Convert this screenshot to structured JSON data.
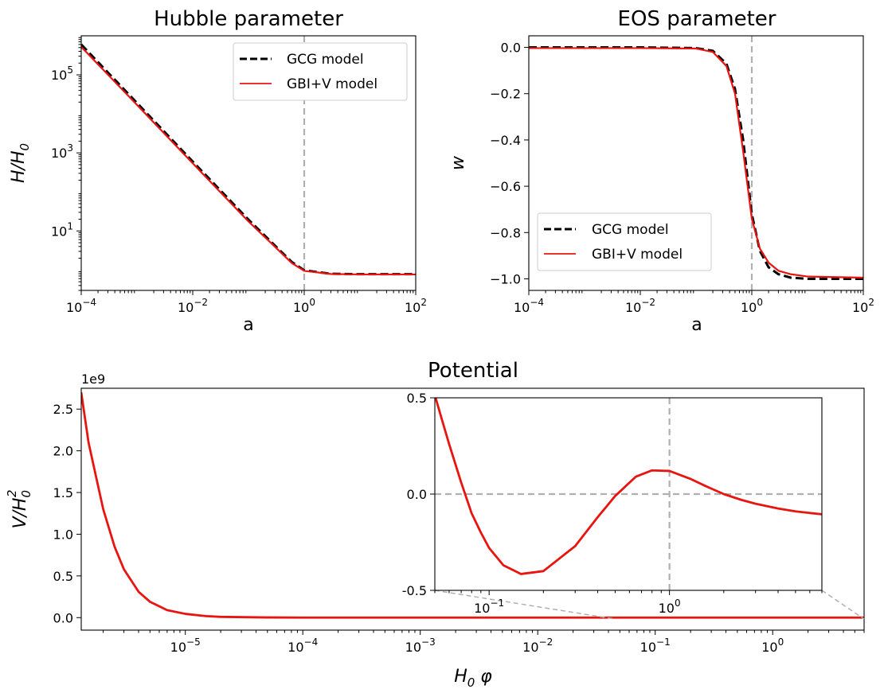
{
  "colors": {
    "gcg": "#000000",
    "gbiv": "#e8140f",
    "reference": "#b0b0b0",
    "zoom_connector": "#b0b0b0"
  },
  "chart_data": [
    {
      "id": "hubble",
      "type": "line",
      "title": "Hubble parameter",
      "xlabel": "a",
      "ylabel": "H/H0",
      "ylabel_parts": {
        "main": "H/H",
        "sub": "0"
      },
      "xscale": "log",
      "yscale": "log",
      "xlim": [
        0.0001,
        100
      ],
      "ylim": [
        0.3,
        1000000
      ],
      "x_ticks": [
        {
          "value": 0.0001,
          "base": "10",
          "exp": "−4"
        },
        {
          "value": 0.01,
          "base": "10",
          "exp": "−2"
        },
        {
          "value": 1,
          "base": "10",
          "exp": "0"
        },
        {
          "value": 100,
          "base": "10",
          "exp": "2"
        }
      ],
      "y_ticks": [
        {
          "value": 10,
          "base": "10",
          "exp": "1"
        },
        {
          "value": 1000,
          "base": "10",
          "exp": "3"
        },
        {
          "value": 100000,
          "base": "10",
          "exp": "5"
        }
      ],
      "reference_lines": [
        {
          "orientation": "vertical",
          "value": 1
        }
      ],
      "legend": {
        "placement": "top-right"
      },
      "series": [
        {
          "name": "GCG model",
          "style": "dashed",
          "color": "#000000",
          "x": [
            0.0001,
            0.001,
            0.01,
            0.1,
            0.3,
            0.6,
            1,
            3,
            10,
            100
          ],
          "y": [
            600000,
            19000,
            600,
            19.5,
            4.2,
            1.6,
            0.98,
            0.8,
            0.78,
            0.78
          ]
        },
        {
          "name": "GBI+V model",
          "style": "solid",
          "color": "#e8140f",
          "x": [
            0.0001,
            0.001,
            0.01,
            0.1,
            0.3,
            0.6,
            1,
            3,
            10,
            100
          ],
          "y": [
            520000,
            17000,
            540,
            17.5,
            3.9,
            1.5,
            0.95,
            0.79,
            0.77,
            0.77
          ]
        }
      ]
    },
    {
      "id": "eos",
      "type": "line",
      "title": "EOS parameter",
      "xlabel": "a",
      "ylabel": "w",
      "xscale": "log",
      "yscale": "linear",
      "xlim": [
        0.0001,
        100
      ],
      "ylim": [
        -1.05,
        0.05
      ],
      "x_ticks": [
        {
          "value": 0.0001,
          "base": "10",
          "exp": "−4"
        },
        {
          "value": 0.01,
          "base": "10",
          "exp": "−2"
        },
        {
          "value": 1,
          "base": "10",
          "exp": "0"
        },
        {
          "value": 100,
          "base": "10",
          "exp": "2"
        }
      ],
      "y_ticks": [
        {
          "value": 0.0,
          "label": "0.0"
        },
        {
          "value": -0.2,
          "label": "−0.2"
        },
        {
          "value": -0.4,
          "label": "−0.4"
        },
        {
          "value": -0.6,
          "label": "−0.6"
        },
        {
          "value": -0.8,
          "label": "−0.8"
        },
        {
          "value": -1.0,
          "label": "−1.0"
        }
      ],
      "reference_lines": [
        {
          "orientation": "vertical",
          "value": 1
        }
      ],
      "legend": {
        "placement": "lower-left"
      },
      "series": [
        {
          "name": "GCG model",
          "style": "dashed",
          "color": "#000000",
          "x": [
            0.0001,
            0.01,
            0.1,
            0.2,
            0.35,
            0.5,
            0.7,
            1,
            1.4,
            2,
            3,
            5,
            10,
            100
          ],
          "y": [
            0.0,
            0.0,
            -0.003,
            -0.015,
            -0.07,
            -0.18,
            -0.4,
            -0.72,
            -0.88,
            -0.95,
            -0.98,
            -0.995,
            -1.0,
            -1.0
          ]
        },
        {
          "name": "GBI+V model",
          "style": "solid",
          "color": "#e8140f",
          "x": [
            0.0001,
            0.01,
            0.1,
            0.2,
            0.35,
            0.5,
            0.7,
            1,
            1.4,
            2,
            3,
            5,
            10,
            100
          ],
          "y": [
            -0.003,
            -0.003,
            -0.005,
            -0.02,
            -0.08,
            -0.2,
            -0.45,
            -0.74,
            -0.87,
            -0.93,
            -0.965,
            -0.98,
            -0.99,
            -0.995
          ]
        }
      ]
    },
    {
      "id": "potential",
      "type": "line",
      "title": "Potential",
      "xlabel": "H0 φ",
      "xlabel_parts": {
        "main": "H",
        "sub": "0",
        "rest": "φ"
      },
      "ylabel": "V/H0^2",
      "ylabel_parts": {
        "main": "V/H",
        "sub": "0",
        "sup": "2"
      },
      "xscale": "log",
      "yscale": "linear",
      "xlim": [
        1.3e-06,
        6
      ],
      "ylim": [
        -0.15,
        2.75
      ],
      "y_multiplier": "1e9",
      "x_ticks": [
        {
          "value": 1e-05,
          "base": "10",
          "exp": "−5"
        },
        {
          "value": 0.0001,
          "base": "10",
          "exp": "−4"
        },
        {
          "value": 0.001,
          "base": "10",
          "exp": "−3"
        },
        {
          "value": 0.01,
          "base": "10",
          "exp": "−2"
        },
        {
          "value": 0.1,
          "base": "10",
          "exp": "−1"
        },
        {
          "value": 1,
          "base": "10",
          "exp": "0"
        }
      ],
      "y_ticks": [
        {
          "value": 0.0,
          "label": "0.0"
        },
        {
          "value": 0.5,
          "label": "0.5"
        },
        {
          "value": 1.0,
          "label": "1.0"
        },
        {
          "value": 1.5,
          "label": "1.5"
        },
        {
          "value": 2.0,
          "label": "2.0"
        },
        {
          "value": 2.5,
          "label": "2.5"
        }
      ],
      "series": [
        {
          "name": "",
          "style": "solid",
          "color": "#e8140f",
          "x": [
            1.3e-06,
            1.5e-06,
            2e-06,
            2.5e-06,
            3e-06,
            4e-06,
            5e-06,
            7e-06,
            1e-05,
            1.5e-05,
            2e-05,
            5e-05,
            0.0001,
            0.001,
            0.01,
            0.1,
            1,
            6
          ],
          "y": [
            2.7,
            2.1,
            1.3,
            0.85,
            0.58,
            0.31,
            0.19,
            0.09,
            0.045,
            0.018,
            0.009,
            0.002,
            0.0005,
            0.0,
            0.0,
            0.0,
            0.0,
            0.0
          ]
        }
      ]
    },
    {
      "id": "potential_inset",
      "type": "line",
      "xscale": "log",
      "yscale": "linear",
      "xlim": [
        0.05,
        7
      ],
      "ylim": [
        -0.5,
        0.5
      ],
      "x_ticks": [
        {
          "value": 0.1,
          "base": "10",
          "exp": "−1"
        },
        {
          "value": 1,
          "base": "10",
          "exp": "0"
        }
      ],
      "y_ticks": [
        {
          "value": 0.5,
          "label": "0.5"
        },
        {
          "value": 0.0,
          "label": "0.0"
        },
        {
          "value": -0.5,
          "label": "-0.5"
        }
      ],
      "reference_lines": [
        {
          "orientation": "vertical",
          "value": 1
        },
        {
          "orientation": "horizontal",
          "value": 0
        }
      ],
      "series": [
        {
          "name": "",
          "style": "solid",
          "color": "#e8140f",
          "x": [
            0.0505,
            0.055,
            0.06,
            0.07,
            0.08,
            0.09,
            0.1,
            0.12,
            0.15,
            0.2,
            0.3,
            0.4,
            0.5,
            0.65,
            0.8,
            1,
            1.3,
            1.6,
            2,
            2.5,
            3,
            4,
            5,
            7
          ],
          "y": [
            0.5,
            0.38,
            0.26,
            0.06,
            -0.1,
            -0.2,
            -0.28,
            -0.37,
            -0.415,
            -0.4,
            -0.27,
            -0.12,
            -0.01,
            0.09,
            0.123,
            0.12,
            0.08,
            0.04,
            0.0,
            -0.03,
            -0.05,
            -0.075,
            -0.09,
            -0.105
          ]
        }
      ]
    }
  ]
}
